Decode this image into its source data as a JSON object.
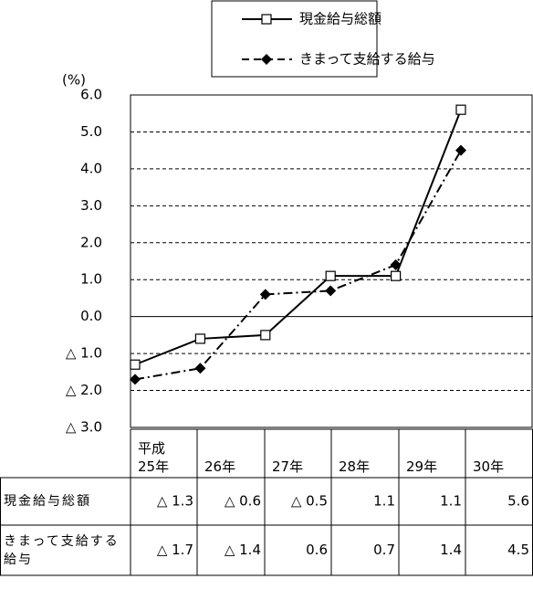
{
  "chart_data": {
    "type": "line",
    "y_axis_label": "(%)",
    "categories": [
      "平成\n25年",
      "26年",
      "27年",
      "28年",
      "29年",
      "30年"
    ],
    "series": [
      {
        "name": "現金給与総額",
        "color": "#000000",
        "marker": "square",
        "line_style": "solid",
        "values": [
          -1.3,
          -0.6,
          -0.5,
          1.1,
          1.1,
          5.6
        ],
        "value_labels": [
          "△ 1.3",
          "△ 0.6",
          "△ 0.5",
          "1.1",
          "1.1",
          "5.6"
        ]
      },
      {
        "name": "きまって支給する給与",
        "color": "#000000",
        "marker": "diamond",
        "line_style": "dashdot",
        "values": [
          -1.7,
          -1.4,
          0.6,
          0.7,
          1.4,
          4.5
        ],
        "value_labels": [
          "△ 1.7",
          "△ 1.4",
          "0.6",
          "0.7",
          "1.4",
          "4.5"
        ]
      }
    ],
    "ylim": [
      -3,
      6
    ],
    "yticks": [
      {
        "value": 6,
        "label": "6.0"
      },
      {
        "value": 5,
        "label": "5.0"
      },
      {
        "value": 4,
        "label": "4.0"
      },
      {
        "value": 3,
        "label": "3.0"
      },
      {
        "value": 2,
        "label": "2.0"
      },
      {
        "value": 1,
        "label": "1.0"
      },
      {
        "value": 0,
        "label": "0.0"
      },
      {
        "value": -1,
        "label": "△ 1.0"
      },
      {
        "value": -2,
        "label": "△ 2.0"
      },
      {
        "value": -3,
        "label": "△ 3.0"
      }
    ],
    "grid": true,
    "legend": "top"
  }
}
